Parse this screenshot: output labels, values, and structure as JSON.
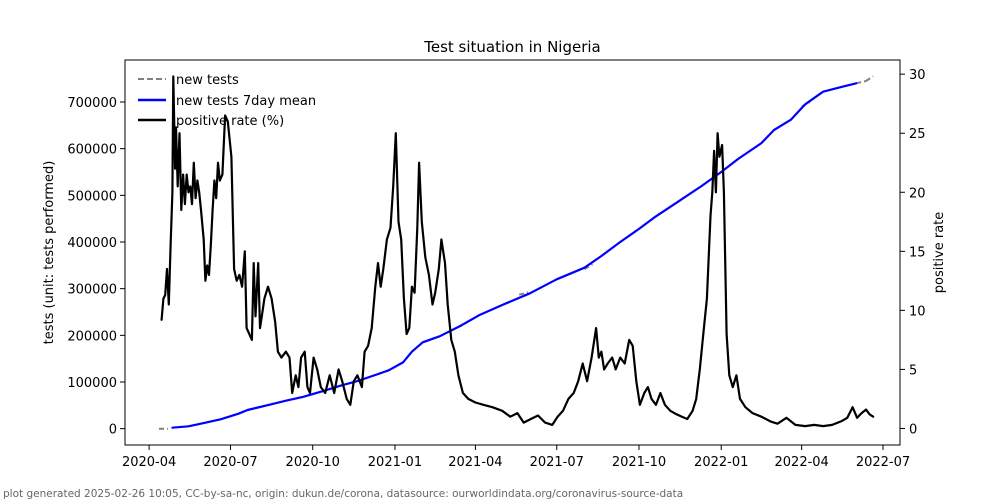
{
  "chart_data": {
    "type": "line",
    "title": "Test situation in Nigeria",
    "xlabel": "",
    "ylabel": "tests (unit: tests performed)",
    "ylabel_right": "positive rate",
    "x_ticks": [
      "2020-04",
      "2020-07",
      "2020-10",
      "2021-01",
      "2021-04",
      "2021-07",
      "2021-10",
      "2022-01",
      "2022-04",
      "2022-07"
    ],
    "y_ticks_left": [
      0,
      100000,
      200000,
      300000,
      400000,
      500000,
      600000,
      700000
    ],
    "y_ticks_right": [
      0,
      5,
      10,
      15,
      20,
      25,
      30
    ],
    "xlim": [
      "2020-03-05",
      "2022-07-20"
    ],
    "ylim_left": [
      -35000,
      790000
    ],
    "ylim_right": [
      -1.4,
      31.2
    ],
    "grid": false,
    "legend_position": "top-left",
    "legend": [
      {
        "label": "new tests",
        "color": "#808080",
        "style": "dashed"
      },
      {
        "label": "new tests 7day mean",
        "color": "#0000ff",
        "style": "solid"
      },
      {
        "label": "positive rate (%)",
        "color": "#000000",
        "style": "solid"
      }
    ],
    "series": [
      {
        "name": "new tests",
        "axis": "left",
        "color": "#808080",
        "style": "dashed",
        "points": [
          [
            "2020-04-12",
            0
          ],
          [
            "2020-04-22",
            0
          ],
          [
            "2021-05-20",
            287000
          ],
          [
            "2021-05-30",
            292000
          ],
          [
            "2021-08-01",
            342000
          ],
          [
            "2021-08-10",
            352000
          ],
          [
            "2022-04-01",
            690000
          ],
          [
            "2022-04-10",
            700000
          ],
          [
            "2022-06-01",
            740000
          ],
          [
            "2022-06-12",
            745000
          ],
          [
            "2022-06-20",
            755000
          ]
        ]
      },
      {
        "name": "new tests 7day mean",
        "axis": "left",
        "color": "#0000ff",
        "style": "solid",
        "points": [
          [
            "2020-04-27",
            2000
          ],
          [
            "2020-05-15",
            5000
          ],
          [
            "2020-06-01",
            12000
          ],
          [
            "2020-06-20",
            20000
          ],
          [
            "2020-07-10",
            32000
          ],
          [
            "2020-07-20",
            40000
          ],
          [
            "2020-08-15",
            52000
          ],
          [
            "2020-09-01",
            60000
          ],
          [
            "2020-09-20",
            68000
          ],
          [
            "2020-10-15",
            82000
          ],
          [
            "2020-11-01",
            92000
          ],
          [
            "2020-11-20",
            102000
          ],
          [
            "2020-12-10",
            115000
          ],
          [
            "2020-12-25",
            125000
          ],
          [
            "2021-01-10",
            142000
          ],
          [
            "2021-01-20",
            165000
          ],
          [
            "2021-02-01",
            185000
          ],
          [
            "2021-02-20",
            198000
          ],
          [
            "2021-03-15",
            220000
          ],
          [
            "2021-04-05",
            243000
          ],
          [
            "2021-05-01",
            265000
          ],
          [
            "2021-06-01",
            290000
          ],
          [
            "2021-07-01",
            320000
          ],
          [
            "2021-08-01",
            345000
          ],
          [
            "2021-08-20",
            370000
          ],
          [
            "2021-09-10",
            400000
          ],
          [
            "2021-10-01",
            428000
          ],
          [
            "2021-10-20",
            455000
          ],
          [
            "2021-11-15",
            488000
          ],
          [
            "2021-12-10",
            520000
          ],
          [
            "2022-01-01",
            550000
          ],
          [
            "2022-01-20",
            578000
          ],
          [
            "2022-02-15",
            612000
          ],
          [
            "2022-03-01",
            640000
          ],
          [
            "2022-03-20",
            662000
          ],
          [
            "2022-04-05",
            695000
          ],
          [
            "2022-04-25",
            722000
          ],
          [
            "2022-05-15",
            732000
          ],
          [
            "2022-06-01",
            740000
          ]
        ]
      },
      {
        "name": "positive rate (%)",
        "axis": "right",
        "color": "#000000",
        "style": "solid",
        "points": [
          [
            "2020-04-15",
            9.2
          ],
          [
            "2020-04-17",
            11.0
          ],
          [
            "2020-04-19",
            11.3
          ],
          [
            "2020-04-21",
            13.5
          ],
          [
            "2020-04-23",
            10.5
          ],
          [
            "2020-04-25",
            15.5
          ],
          [
            "2020-04-27",
            20.0
          ],
          [
            "2020-04-28",
            29.8
          ],
          [
            "2020-04-30",
            22.0
          ],
          [
            "2020-05-01",
            25.5
          ],
          [
            "2020-05-03",
            20.5
          ],
          [
            "2020-05-05",
            25.0
          ],
          [
            "2020-05-07",
            18.5
          ],
          [
            "2020-05-09",
            21.5
          ],
          [
            "2020-05-11",
            19.0
          ],
          [
            "2020-05-13",
            21.5
          ],
          [
            "2020-05-15",
            20.0
          ],
          [
            "2020-05-17",
            20.5
          ],
          [
            "2020-05-19",
            19.0
          ],
          [
            "2020-05-21",
            22.5
          ],
          [
            "2020-05-23",
            19.5
          ],
          [
            "2020-05-25",
            21.0
          ],
          [
            "2020-05-27",
            20.0
          ],
          [
            "2020-05-29",
            18.5
          ],
          [
            "2020-06-01",
            16.0
          ],
          [
            "2020-06-03",
            12.5
          ],
          [
            "2020-06-05",
            13.8
          ],
          [
            "2020-06-07",
            13.0
          ],
          [
            "2020-06-09",
            15.5
          ],
          [
            "2020-06-11",
            18.5
          ],
          [
            "2020-06-13",
            21.0
          ],
          [
            "2020-06-15",
            19.5
          ],
          [
            "2020-06-17",
            22.5
          ],
          [
            "2020-06-19",
            21.0
          ],
          [
            "2020-06-22",
            21.5
          ],
          [
            "2020-06-25",
            26.5
          ],
          [
            "2020-06-28",
            26.0
          ],
          [
            "2020-07-02",
            23.0
          ],
          [
            "2020-07-05",
            13.5
          ],
          [
            "2020-07-08",
            12.5
          ],
          [
            "2020-07-11",
            13.0
          ],
          [
            "2020-07-14",
            12.0
          ],
          [
            "2020-07-17",
            15.0
          ],
          [
            "2020-07-19",
            8.5
          ],
          [
            "2020-07-22",
            8.0
          ],
          [
            "2020-07-25",
            7.5
          ],
          [
            "2020-07-27",
            14.0
          ],
          [
            "2020-07-29",
            9.5
          ],
          [
            "2020-08-01",
            14.0
          ],
          [
            "2020-08-03",
            8.5
          ],
          [
            "2020-08-05",
            9.5
          ],
          [
            "2020-08-08",
            11.0
          ],
          [
            "2020-08-12",
            12.0
          ],
          [
            "2020-08-16",
            11.0
          ],
          [
            "2020-08-20",
            9.0
          ],
          [
            "2020-08-23",
            6.5
          ],
          [
            "2020-08-27",
            6.0
          ],
          [
            "2020-09-01",
            6.5
          ],
          [
            "2020-09-05",
            6.0
          ],
          [
            "2020-09-08",
            3.0
          ],
          [
            "2020-09-12",
            4.5
          ],
          [
            "2020-09-15",
            3.5
          ],
          [
            "2020-09-18",
            6.0
          ],
          [
            "2020-09-22",
            6.5
          ],
          [
            "2020-09-25",
            3.5
          ],
          [
            "2020-09-28",
            3.0
          ],
          [
            "2020-10-02",
            6.0
          ],
          [
            "2020-10-06",
            5.0
          ],
          [
            "2020-10-10",
            3.5
          ],
          [
            "2020-10-15",
            3.0
          ],
          [
            "2020-10-20",
            4.5
          ],
          [
            "2020-10-25",
            3.0
          ],
          [
            "2020-10-30",
            5.0
          ],
          [
            "2020-11-03",
            4.0
          ],
          [
            "2020-11-08",
            2.5
          ],
          [
            "2020-11-12",
            2.0
          ],
          [
            "2020-11-16",
            4.0
          ],
          [
            "2020-11-20",
            4.5
          ],
          [
            "2020-11-25",
            3.5
          ],
          [
            "2020-11-28",
            6.5
          ],
          [
            "2020-12-02",
            7.0
          ],
          [
            "2020-12-06",
            8.5
          ],
          [
            "2020-12-10",
            12.0
          ],
          [
            "2020-12-13",
            14.0
          ],
          [
            "2020-12-16",
            12.0
          ],
          [
            "2020-12-19",
            13.5
          ],
          [
            "2020-12-23",
            16.0
          ],
          [
            "2020-12-27",
            17.0
          ],
          [
            "2020-12-30",
            20.5
          ],
          [
            "2021-01-02",
            25.0
          ],
          [
            "2021-01-05",
            17.5
          ],
          [
            "2021-01-08",
            16.0
          ],
          [
            "2021-01-11",
            11.0
          ],
          [
            "2021-01-14",
            8.0
          ],
          [
            "2021-01-17",
            8.5
          ],
          [
            "2021-01-20",
            12.0
          ],
          [
            "2021-01-23",
            11.5
          ],
          [
            "2021-01-26",
            17.0
          ],
          [
            "2021-01-28",
            22.5
          ],
          [
            "2021-01-31",
            17.5
          ],
          [
            "2021-02-04",
            14.5
          ],
          [
            "2021-02-08",
            13.0
          ],
          [
            "2021-02-12",
            10.5
          ],
          [
            "2021-02-15",
            11.5
          ],
          [
            "2021-02-19",
            13.5
          ],
          [
            "2021-02-22",
            16.0
          ],
          [
            "2021-02-26",
            14.0
          ],
          [
            "2021-03-01",
            10.5
          ],
          [
            "2021-03-05",
            7.5
          ],
          [
            "2021-03-09",
            6.5
          ],
          [
            "2021-03-13",
            4.5
          ],
          [
            "2021-03-18",
            3.0
          ],
          [
            "2021-03-24",
            2.5
          ],
          [
            "2021-04-01",
            2.2
          ],
          [
            "2021-04-10",
            2.0
          ],
          [
            "2021-04-20",
            1.8
          ],
          [
            "2021-05-01",
            1.5
          ],
          [
            "2021-05-10",
            1.0
          ],
          [
            "2021-05-18",
            1.3
          ],
          [
            "2021-05-25",
            0.5
          ],
          [
            "2021-06-02",
            0.8
          ],
          [
            "2021-06-10",
            1.1
          ],
          [
            "2021-06-18",
            0.5
          ],
          [
            "2021-06-26",
            0.3
          ],
          [
            "2021-07-02",
            1.0
          ],
          [
            "2021-07-08",
            1.5
          ],
          [
            "2021-07-14",
            2.5
          ],
          [
            "2021-07-20",
            3.0
          ],
          [
            "2021-07-25",
            4.0
          ],
          [
            "2021-07-30",
            5.5
          ],
          [
            "2021-08-04",
            4.0
          ],
          [
            "2021-08-09",
            6.0
          ],
          [
            "2021-08-14",
            8.5
          ],
          [
            "2021-08-17",
            6.0
          ],
          [
            "2021-08-20",
            6.5
          ],
          [
            "2021-08-23",
            5.0
          ],
          [
            "2021-08-27",
            5.5
          ],
          [
            "2021-09-01",
            6.0
          ],
          [
            "2021-09-05",
            5.0
          ],
          [
            "2021-09-10",
            6.0
          ],
          [
            "2021-09-15",
            5.5
          ],
          [
            "2021-09-20",
            7.5
          ],
          [
            "2021-09-24",
            7.0
          ],
          [
            "2021-09-28",
            4.0
          ],
          [
            "2021-10-02",
            2.0
          ],
          [
            "2021-10-07",
            3.0
          ],
          [
            "2021-10-11",
            3.5
          ],
          [
            "2021-10-15",
            2.5
          ],
          [
            "2021-10-20",
            2.0
          ],
          [
            "2021-10-25",
            3.0
          ],
          [
            "2021-10-30",
            2.0
          ],
          [
            "2021-11-05",
            1.5
          ],
          [
            "2021-11-12",
            1.2
          ],
          [
            "2021-11-18",
            1.0
          ],
          [
            "2021-11-24",
            0.8
          ],
          [
            "2021-11-30",
            1.5
          ],
          [
            "2021-12-04",
            2.5
          ],
          [
            "2021-12-08",
            5.0
          ],
          [
            "2021-12-12",
            8.0
          ],
          [
            "2021-12-16",
            11.0
          ],
          [
            "2021-12-20",
            18.0
          ],
          [
            "2021-12-22",
            20.0
          ],
          [
            "2021-12-24",
            23.5
          ],
          [
            "2021-12-26",
            20.0
          ],
          [
            "2021-12-28",
            25.0
          ],
          [
            "2021-12-30",
            23.0
          ],
          [
            "2022-01-02",
            24.0
          ],
          [
            "2022-01-04",
            20.0
          ],
          [
            "2022-01-07",
            8.0
          ],
          [
            "2022-01-10",
            4.5
          ],
          [
            "2022-01-14",
            3.5
          ],
          [
            "2022-01-18",
            4.5
          ],
          [
            "2022-01-22",
            2.5
          ],
          [
            "2022-01-28",
            1.8
          ],
          [
            "2022-02-05",
            1.3
          ],
          [
            "2022-02-15",
            1.0
          ],
          [
            "2022-02-25",
            0.6
          ],
          [
            "2022-03-05",
            0.4
          ],
          [
            "2022-03-15",
            0.9
          ],
          [
            "2022-03-25",
            0.3
          ],
          [
            "2022-04-05",
            0.2
          ],
          [
            "2022-04-15",
            0.3
          ],
          [
            "2022-04-25",
            0.2
          ],
          [
            "2022-05-05",
            0.3
          ],
          [
            "2022-05-15",
            0.6
          ],
          [
            "2022-05-22",
            0.9
          ],
          [
            "2022-05-28",
            1.8
          ],
          [
            "2022-06-02",
            0.9
          ],
          [
            "2022-06-07",
            1.3
          ],
          [
            "2022-06-12",
            1.6
          ],
          [
            "2022-06-16",
            1.2
          ],
          [
            "2022-06-20",
            1.0
          ]
        ]
      }
    ]
  },
  "footer": "plot generated 2025-02-26 10:05, CC-by-sa-nc, origin: dukun.de/corona, datasource: ourworldindata.org/coronavirus-source-data"
}
